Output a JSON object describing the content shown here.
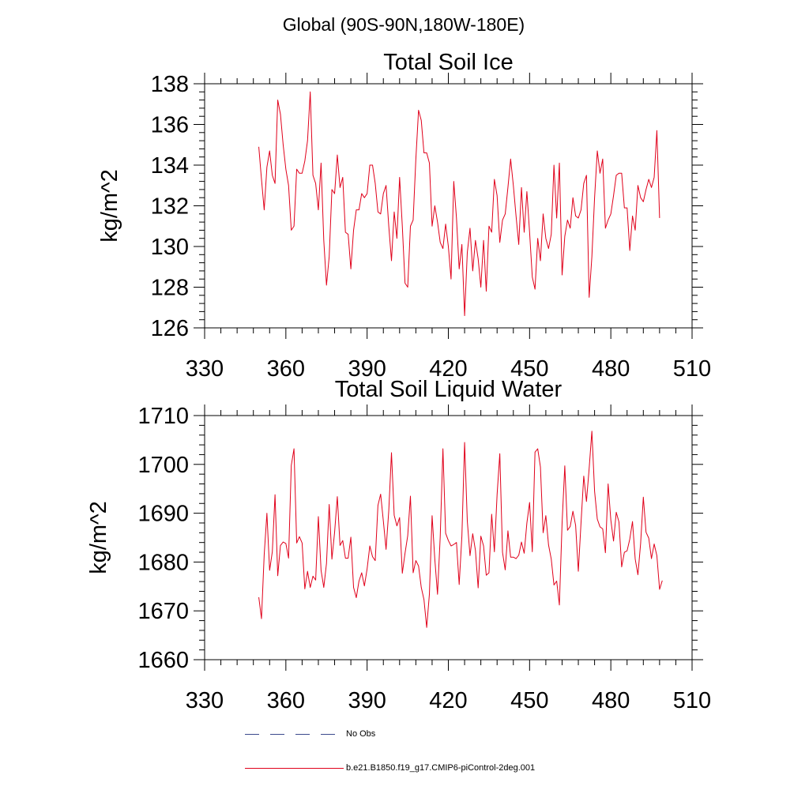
{
  "page_title": "Global (90S-90N,180W-180E)",
  "colors": {
    "series": "#e0001a",
    "axis": "#000000",
    "obs": "#3b4a8c"
  },
  "legend": {
    "obs_label": "No Obs",
    "model_label": "b.e21.B1850.f19_g17.CMIP6-piControl-2deg.001"
  },
  "chart_data": [
    {
      "type": "line",
      "title": "Total Soil Ice",
      "xlabel": "",
      "ylabel": "kg/m^2",
      "xlim": [
        330,
        510
      ],
      "ylim": [
        126,
        138
      ],
      "xticks": [
        330,
        360,
        390,
        420,
        450,
        480,
        510
      ],
      "yticks": [
        126,
        128,
        130,
        132,
        134,
        136,
        138
      ],
      "series": [
        {
          "name": "b.e21.B1850.f19_g17.CMIP6-piControl-2deg.001",
          "x_start": 350,
          "values": [
            134.9,
            133.3,
            131.8,
            133.9,
            134.7,
            133.5,
            133.1,
            137.2,
            136.5,
            135.0,
            133.8,
            133.0,
            130.8,
            131.0,
            133.8,
            133.6,
            133.6,
            134.2,
            135.2,
            137.6,
            133.5,
            133.1,
            131.8,
            134.1,
            130.3,
            128.1,
            129.5,
            132.8,
            132.6,
            134.5,
            132.9,
            133.4,
            130.7,
            130.6,
            128.9,
            130.8,
            131.8,
            131.8,
            132.6,
            132.4,
            132.6,
            134.0,
            134.0,
            133.1,
            131.7,
            131.6,
            132.6,
            133.0,
            131.0,
            129.3,
            131.7,
            130.4,
            133.4,
            131.0,
            128.2,
            128.0,
            131.0,
            131.3,
            134.3,
            136.7,
            136.2,
            134.6,
            134.6,
            134.1,
            131.0,
            132.0,
            131.2,
            130.2,
            129.9,
            131.1,
            130.0,
            128.4,
            133.2,
            131.4,
            128.9,
            130.1,
            126.6,
            129.7,
            130.9,
            128.8,
            130.3,
            129.4,
            128.0,
            130.3,
            127.8,
            131.0,
            130.7,
            133.3,
            132.5,
            130.2,
            131.3,
            131.6,
            132.9,
            134.3,
            133.0,
            131.5,
            130.1,
            132.9,
            130.7,
            132.7,
            130.7,
            128.5,
            127.9,
            130.4,
            129.3,
            131.6,
            130.4,
            129.9,
            130.6,
            134.0,
            131.4,
            134.1,
            128.6,
            130.5,
            131.3,
            130.9,
            132.4,
            131.5,
            131.4,
            131.8,
            133.1,
            133.5,
            127.5,
            129.5,
            132.4,
            134.7,
            133.6,
            134.3,
            130.9,
            131.3,
            131.6,
            132.5,
            133.5,
            133.6,
            133.6,
            131.9,
            131.9,
            129.8,
            131.5,
            130.8,
            133.0,
            132.4,
            132.2,
            132.8,
            133.3,
            132.9,
            133.4,
            135.7,
            131.4
          ]
        }
      ]
    },
    {
      "type": "line",
      "title": "Total Soil Liquid Water",
      "xlabel": "",
      "ylabel": "kg/m^2",
      "xlim": [
        330,
        510
      ],
      "ylim": [
        1660,
        1710
      ],
      "xticks": [
        330,
        360,
        390,
        420,
        450,
        480,
        510
      ],
      "yticks": [
        1660,
        1670,
        1680,
        1690,
        1700,
        1710
      ],
      "series": [
        {
          "name": "b.e21.B1850.f19_g17.CMIP6-piControl-2deg.001",
          "x_start": 350,
          "values": [
            1672.8,
            1668.4,
            1681.5,
            1690.0,
            1678.3,
            1682.1,
            1693.8,
            1677.2,
            1683.4,
            1684.1,
            1683.8,
            1680.8,
            1699.8,
            1703.2,
            1683.9,
            1685.2,
            1683.9,
            1674.5,
            1678.1,
            1674.8,
            1677.1,
            1676.3,
            1689.3,
            1678.3,
            1674.8,
            1679.7,
            1691.8,
            1680.6,
            1686.1,
            1693.4,
            1683.4,
            1684.4,
            1680.8,
            1680.8,
            1685.1,
            1674.8,
            1672.7,
            1676.1,
            1677.8,
            1675.1,
            1678.6,
            1683.3,
            1681.1,
            1680.3,
            1691.6,
            1693.9,
            1688.4,
            1682.6,
            1690.5,
            1702.4,
            1689.6,
            1687.4,
            1689.1,
            1677.7,
            1681.8,
            1685.4,
            1693.5,
            1677.8,
            1680.3,
            1679.2,
            1674.8,
            1672.3,
            1666.6,
            1673.4,
            1689.5,
            1680.6,
            1673.4,
            1685.2,
            1703.2,
            1685.9,
            1684.4,
            1683.3,
            1683.6,
            1684.0,
            1675.4,
            1685.3,
            1704.5,
            1688.4,
            1681.3,
            1685.8,
            1682.4,
            1674.7,
            1685.3,
            1683.3,
            1677.3,
            1677.8,
            1689.8,
            1682.1,
            1693.8,
            1702.2,
            1682.0,
            1678.4,
            1686.4,
            1681.0,
            1681.0,
            1680.7,
            1681.4,
            1684.1,
            1681.8,
            1688.0,
            1692.2,
            1682.1,
            1702.5,
            1703.2,
            1699.5,
            1686.0,
            1689.5,
            1683.5,
            1680.6,
            1675.3,
            1676.1,
            1671.2,
            1688.0,
            1699.7,
            1686.5,
            1687.3,
            1690.4,
            1687.5,
            1678.1,
            1688.1,
            1697.6,
            1692.4,
            1699.2,
            1706.8,
            1694.5,
            1688.8,
            1687.2,
            1686.8,
            1681.9,
            1696.0,
            1688.6,
            1684.3,
            1690.2,
            1688.2,
            1679.0,
            1682.0,
            1682.3,
            1684.7,
            1688.3,
            1680.6,
            1677.4,
            1683.8,
            1693.3,
            1686.1,
            1684.9,
            1680.7,
            1683.7,
            1681.3,
            1674.4,
            1676.2
          ]
        }
      ]
    }
  ]
}
